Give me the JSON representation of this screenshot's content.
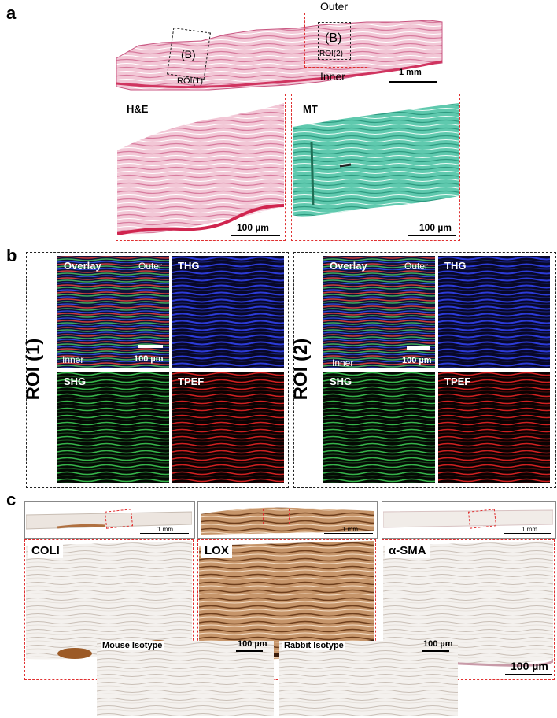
{
  "panel_a": {
    "letter": "a",
    "outer_label": "Outer",
    "inner_label": "Inner",
    "roi1_box_label": "(B)",
    "roi2_box_label": "(B)",
    "roi1_label": "ROI(1)",
    "roi2_label": "ROI(2)",
    "overview_scale": "1 mm",
    "he_label": "H&E",
    "mt_label": "MT",
    "he_scale": "100 µm",
    "mt_scale": "100 µm"
  },
  "panel_b": {
    "letter": "b",
    "roi1": "ROI (1)",
    "roi2": "ROI (2)",
    "overlay": "Overlay",
    "outer": "Outer",
    "inner": "Inner",
    "scale": "100 µm",
    "thg": "THG",
    "shg": "SHG",
    "tpef": "TPEF"
  },
  "panel_c": {
    "letter": "c",
    "overview_scale": "1 mm",
    "coli": "COLI",
    "lox": "LOX",
    "asma": "α-SMA",
    "scale": "100 µm",
    "mouse_isotype": "Mouse Isotype",
    "rabbit_isotype": "Rabbit Isotype"
  },
  "colors": {
    "he_pink": "#e8a8c0",
    "mt_teal": "#4fbfa5",
    "thg_blue": "#1a2aa8",
    "shg_green": "#2d8f3a",
    "tpef_red": "#b01818",
    "lox_brown": "#a0683a",
    "roi_dash_red": "#e03030"
  }
}
